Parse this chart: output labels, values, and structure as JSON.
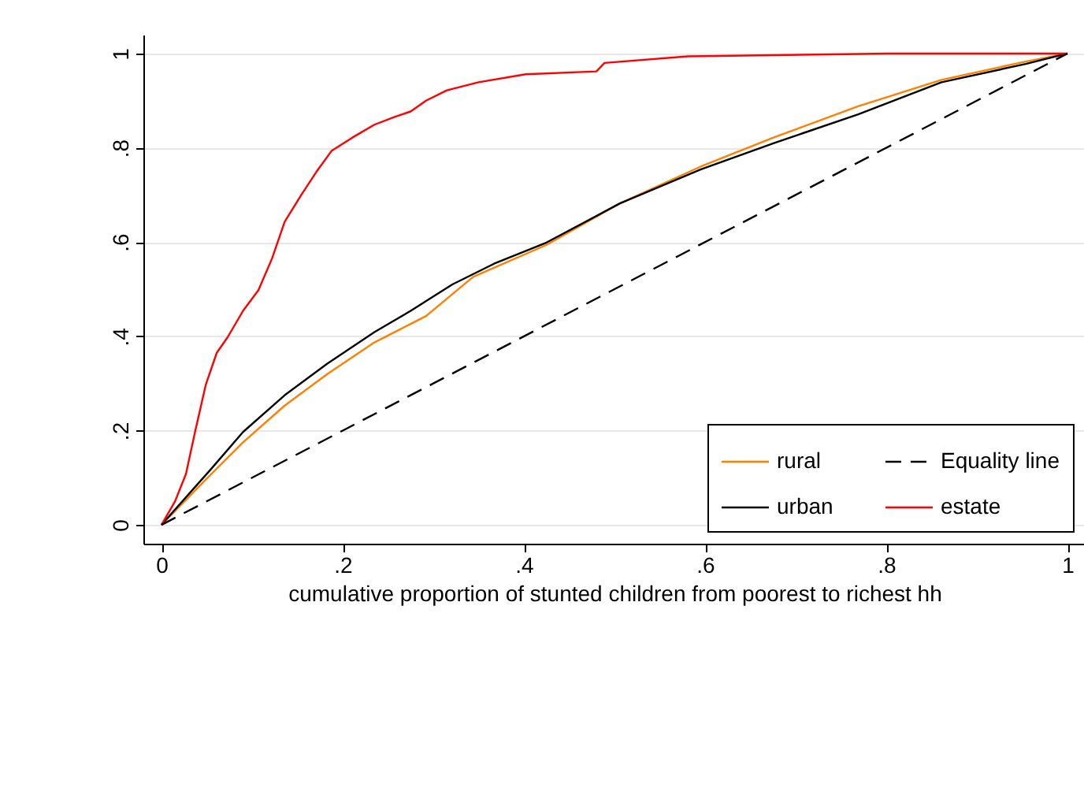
{
  "chart_data": {
    "type": "line",
    "xlabel": "cumulative proportion of stunted children from poorest to richest hh",
    "xlim": [
      -0.02,
      1.02
    ],
    "ylim": [
      -0.04,
      1.04
    ],
    "xticks": [
      0,
      {
        "value": 0.2,
        "label": ".2"
      },
      {
        "value": 0.4,
        "label": ".4"
      },
      {
        "value": 0.6,
        "label": ".6"
      },
      {
        "value": 0.8,
        "label": ".8"
      },
      1
    ],
    "yticks": [
      0,
      {
        "value": 0.2,
        "label": ".2"
      },
      {
        "value": 0.4,
        "label": ".4"
      },
      {
        "value": 0.6,
        "label": ".6"
      },
      {
        "value": 0.8,
        "label": ".8"
      },
      1
    ],
    "grid": "y",
    "legend": "bottom right",
    "series": [
      {
        "name": "rural",
        "color": "#ff8000",
        "line_style": "solid",
        "x": [
          0,
          0.055,
          0.09,
          0.136,
          0.183,
          0.235,
          0.292,
          0.344,
          0.425,
          0.506,
          0.595,
          0.676,
          0.769,
          0.861,
          0.954,
          1
        ],
        "values": [
          0,
          0.108,
          0.175,
          0.253,
          0.32,
          0.387,
          0.443,
          0.526,
          0.594,
          0.682,
          0.76,
          0.822,
          0.888,
          0.944,
          0.983,
          1
        ]
      },
      {
        "name": "urban",
        "color": "#000000",
        "line_style": "solid",
        "x": [
          0,
          0.055,
          0.09,
          0.136,
          0.183,
          0.235,
          0.275,
          0.321,
          0.367,
          0.425,
          0.506,
          0.595,
          0.676,
          0.769,
          0.861,
          0.954,
          1
        ],
        "values": [
          0,
          0.119,
          0.197,
          0.275,
          0.342,
          0.409,
          0.454,
          0.51,
          0.554,
          0.599,
          0.682,
          0.754,
          0.81,
          0.871,
          0.939,
          0.978,
          1
        ]
      },
      {
        "name": "Equality line",
        "color": "#000000",
        "line_style": "dashed",
        "x": [
          0,
          1
        ],
        "values": [
          0,
          1
        ]
      },
      {
        "name": "estate",
        "color": "#ff0000",
        "line_style": "solid",
        "x": [
          0,
          0.015,
          0.027,
          0.037,
          0.049,
          0.061,
          0.073,
          0.09,
          0.107,
          0.122,
          0.136,
          0.154,
          0.171,
          0.188,
          0.211,
          0.235,
          0.258,
          0.275,
          0.292,
          0.315,
          0.35,
          0.402,
          0.48,
          0.489,
          0.581,
          0.803,
          1
        ],
        "values": [
          0,
          0.05,
          0.108,
          0.197,
          0.298,
          0.365,
          0.398,
          0.454,
          0.498,
          0.565,
          0.643,
          0.699,
          0.749,
          0.794,
          0.822,
          0.849,
          0.866,
          0.877,
          0.9,
          0.922,
          0.939,
          0.956,
          0.962,
          0.98,
          0.994,
          1,
          1
        ]
      }
    ]
  }
}
